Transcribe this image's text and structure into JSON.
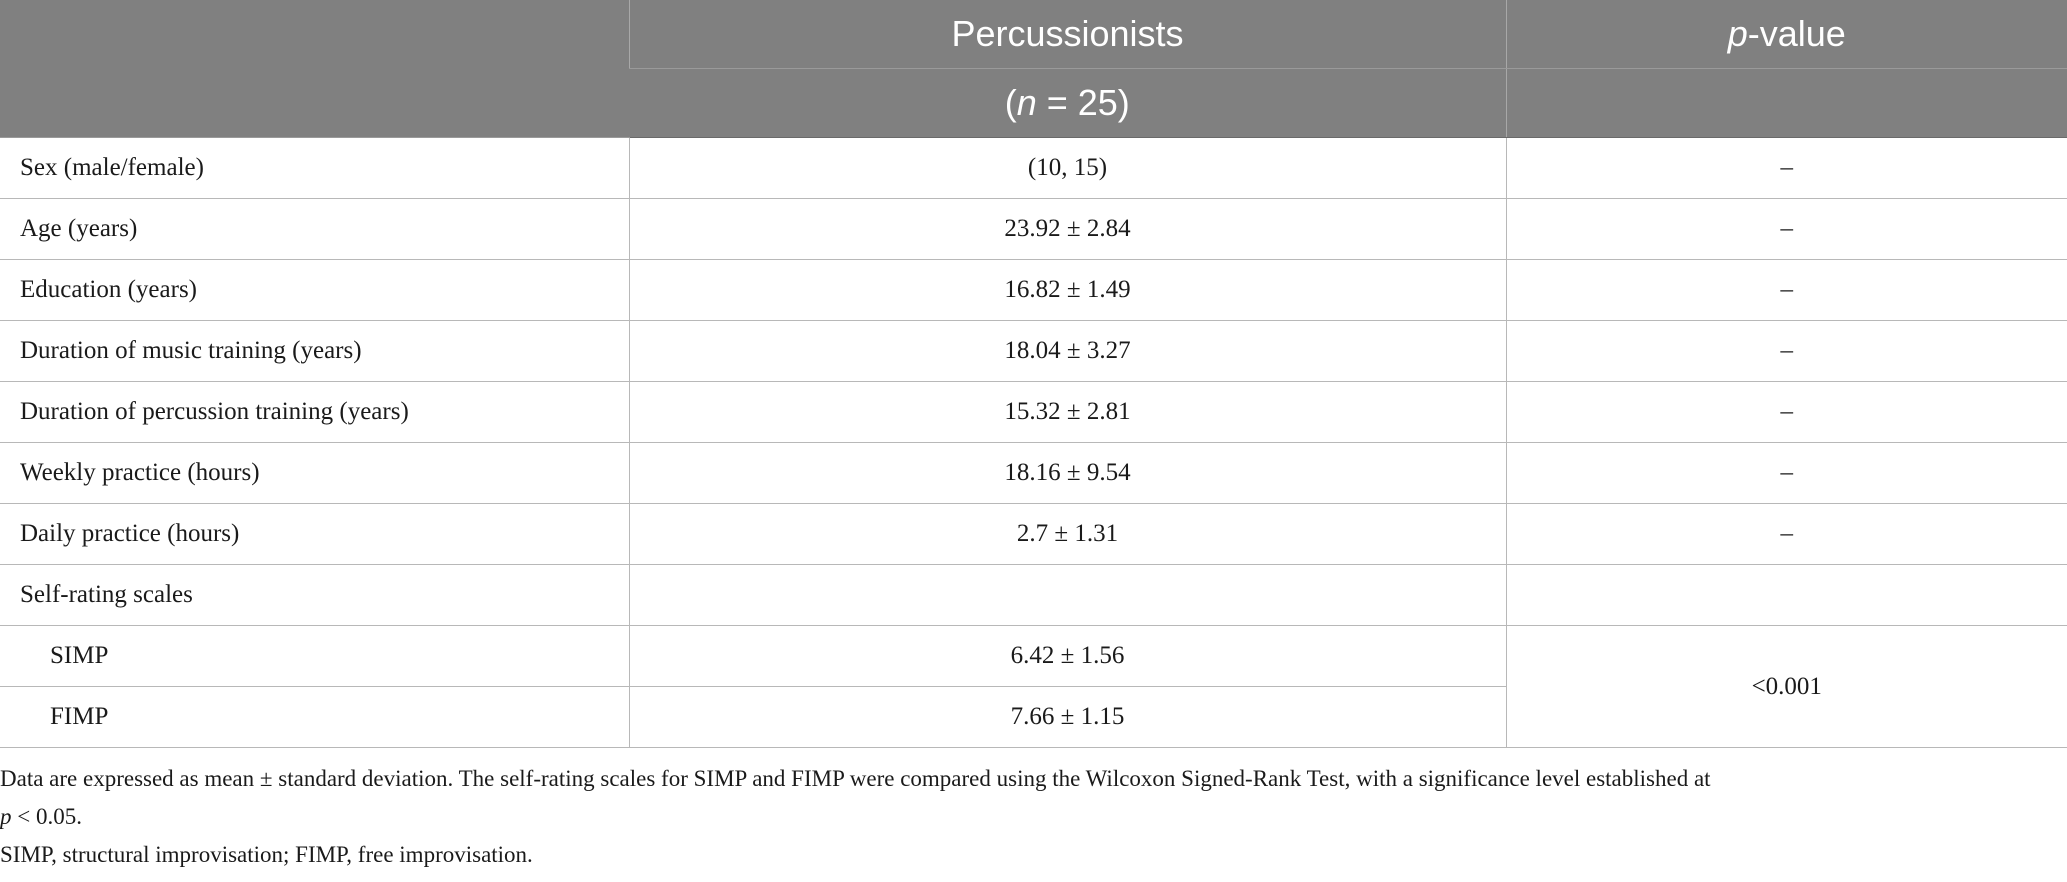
{
  "header": {
    "col1_label": "",
    "col2_label": "Percussionists",
    "col2_sub_prefix": "(",
    "col2_sub_italic": "n",
    "col2_sub_suffix": " = 25)",
    "col3_italic": "p",
    "col3_suffix": "-value"
  },
  "rows": [
    {
      "label": "Sex (male/female)",
      "value": "(10, 15)",
      "p": "–"
    },
    {
      "label": "Age (years)",
      "value": "23.92 ± 2.84",
      "p": "–"
    },
    {
      "label": "Education (years)",
      "value": "16.82 ± 1.49",
      "p": "–"
    },
    {
      "label": "Duration of music training (years)",
      "value": "18.04 ± 3.27",
      "p": "–"
    },
    {
      "label": "Duration of percussion training (years)",
      "value": "15.32 ± 2.81",
      "p": "–"
    },
    {
      "label": "Weekly practice (hours)",
      "value": "18.16 ± 9.54",
      "p": "–"
    },
    {
      "label": "Daily practice (hours)",
      "value": "2.7 ± 1.31",
      "p": "–"
    }
  ],
  "self_rating": {
    "label": "Self-rating scales",
    "items": [
      {
        "label": "SIMP",
        "value": "6.42 ± 1.56"
      },
      {
        "label": "FIMP",
        "value": "7.66 ± 1.15"
      }
    ],
    "p": "<0.001"
  },
  "notes": {
    "line1": "Data are expressed as mean ± standard deviation. The self-rating scales for SIMP and FIMP were compared using the Wilcoxon Signed-Rank Test, with a significance level established at",
    "line2_italic": "p",
    "line2_suffix": " < 0.05.",
    "line3": "SIMP, structural improvisation; FIMP, free improvisation."
  },
  "colors": {
    "header_bg": "#808080",
    "header_text": "#ffffff",
    "grid": "#b8b8b8"
  }
}
